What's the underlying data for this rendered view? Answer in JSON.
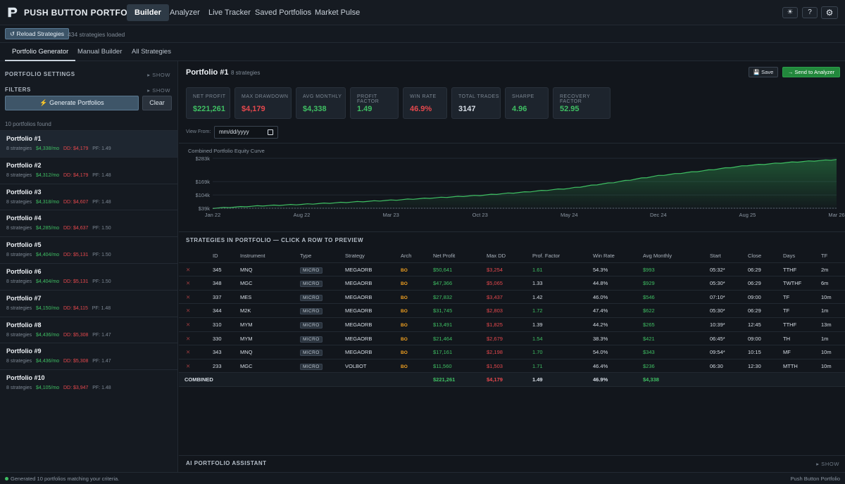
{
  "app": {
    "title": "PUSH BUTTON PORTFOLIO"
  },
  "nav": {
    "items": [
      "Builder",
      "Analyzer",
      "Live Tracker",
      "Saved Portfolios",
      "Market Pulse"
    ],
    "active": "Builder"
  },
  "top_icons": [
    {
      "name": "theme-icon",
      "glyph": "☀"
    },
    {
      "name": "help-icon",
      "glyph": "?"
    },
    {
      "name": "gear-icon",
      "glyph": "⚙"
    }
  ],
  "subbar": {
    "reload_label": "↺ Reload Strategies",
    "loaded_text": "434 strategies loaded"
  },
  "tabs": [
    "Portfolio Generator",
    "Manual Builder",
    "All Strategies"
  ],
  "sidebar": {
    "settings_header": "PORTFOLIO SETTINGS",
    "settings_show": "▸ SHOW",
    "filters_header": "FILTERS",
    "filters_show": "▸ SHOW",
    "generate_label": "⚡ Generate Portfolios",
    "clear_label": "Clear",
    "found_text": "10 portfolios found",
    "portfolios": [
      {
        "title": "Portfolio #1",
        "strategies": "8 strategies",
        "monthly": "$4,338/mo",
        "dd": "DD: $4,179",
        "pf": "PF: 1.49"
      },
      {
        "title": "Portfolio #2",
        "strategies": "8 strategies",
        "monthly": "$4,312/mo",
        "dd": "DD: $4,179",
        "pf": "PF: 1.48"
      },
      {
        "title": "Portfolio #3",
        "strategies": "8 strategies",
        "monthly": "$4,318/mo",
        "dd": "DD: $4,607",
        "pf": "PF: 1.48"
      },
      {
        "title": "Portfolio #4",
        "strategies": "8 strategies",
        "monthly": "$4,285/mo",
        "dd": "DD: $4,637",
        "pf": "PF: 1.50"
      },
      {
        "title": "Portfolio #5",
        "strategies": "8 strategies",
        "monthly": "$4,404/mo",
        "dd": "DD: $5,131",
        "pf": "PF: 1.50"
      },
      {
        "title": "Portfolio #6",
        "strategies": "8 strategies",
        "monthly": "$4,404/mo",
        "dd": "DD: $5,131",
        "pf": "PF: 1.50"
      },
      {
        "title": "Portfolio #7",
        "strategies": "8 strategies",
        "monthly": "$4,150/mo",
        "dd": "DD: $4,115",
        "pf": "PF: 1.48"
      },
      {
        "title": "Portfolio #8",
        "strategies": "8 strategies",
        "monthly": "$4,436/mo",
        "dd": "DD: $5,308",
        "pf": "PF: 1.47"
      },
      {
        "title": "Portfolio #9",
        "strategies": "8 strategies",
        "monthly": "$4,436/mo",
        "dd": "DD: $5,308",
        "pf": "PF: 1.47"
      },
      {
        "title": "Portfolio #10",
        "strategies": "8 strategies",
        "monthly": "$4,105/mo",
        "dd": "DD: $3,947",
        "pf": "PF: 1.48"
      }
    ]
  },
  "main": {
    "title": "Portfolio #1",
    "count": "8 strategies",
    "save_label": "💾 Save",
    "send_label": "→ Send to Analyzer",
    "stats": [
      {
        "label": "NET PROFIT",
        "value": "$221,261",
        "color": "#3fbf63"
      },
      {
        "label": "MAX DRAWDOWN",
        "value": "$4,179",
        "color": "#e5484d"
      },
      {
        "label": "AVG MONTHLY",
        "value": "$4,338",
        "color": "#3fbf63"
      },
      {
        "label": "PROFIT FACTOR",
        "value": "1.49",
        "color": "#3fbf63"
      },
      {
        "label": "WIN RATE",
        "value": "46.9%",
        "color": "#e5484d"
      },
      {
        "label": "TOTAL TRADES",
        "value": "3147",
        "color": "#d6dde5"
      },
      {
        "label": "SHARPE",
        "value": "4.96",
        "color": "#3fbf63"
      },
      {
        "label": "RECOVERY FACTOR",
        "value": "52.95",
        "color": "#3fbf63"
      }
    ],
    "view_from_label": "View From:",
    "date_placeholder": "mm/dd/yyyy",
    "strategies_header": "STRATEGIES IN PORTFOLIO — CLICK A ROW TO PREVIEW",
    "ai_header": "AI PORTFOLIO ASSISTANT",
    "ai_show": "▸ SHOW"
  },
  "chart_data": {
    "type": "area",
    "title": "Combined Portfolio Equity Curve",
    "y_ticks": [
      "$283k",
      "$169k",
      "$104k",
      "$39k"
    ],
    "x_ticks": [
      "Jan 22",
      "Aug 22",
      "Mar 23",
      "Oct 23",
      "May 24",
      "Dec 24",
      "Aug 25",
      "Mar 26"
    ],
    "x": [
      "Jan 22",
      "Apr 22",
      "Aug 22",
      "Dec 22",
      "Mar 23",
      "Jul 23",
      "Oct 23",
      "Jan 24",
      "May 24",
      "Aug 24",
      "Dec 24",
      "Apr 25",
      "Aug 25",
      "Dec 25",
      "Mar 26"
    ],
    "y": [
      39000,
      50000,
      58000,
      68000,
      78000,
      90000,
      102000,
      118000,
      136000,
      165000,
      198000,
      222000,
      248000,
      264000,
      277000
    ],
    "color": "#3fbf63"
  },
  "table": {
    "headers": [
      "ID",
      "Instrument",
      "Type",
      "Strategy",
      "Arch",
      "Net Profit",
      "Max DD",
      "Prof. Factor",
      "Win Rate",
      "Avg Monthly",
      "Start",
      "Close",
      "Days",
      "TF"
    ],
    "rows": [
      {
        "id": "345",
        "inst": "MNQ",
        "type": "MICRO",
        "strategy": "MEGAORB",
        "arch": "BO",
        "net": "$50,641",
        "dd": "$3,254",
        "pf": "1.61",
        "pfc": "g",
        "wr": "54.3%",
        "avg": "$993",
        "start": "05:32*",
        "close": "06:29",
        "days": "TTHF",
        "tf": "2m"
      },
      {
        "id": "348",
        "inst": "MGC",
        "type": "MICRO",
        "strategy": "MEGAORB",
        "arch": "BO",
        "net": "$47,366",
        "dd": "$5,065",
        "pf": "1.33",
        "pfc": "w",
        "wr": "44.8%",
        "avg": "$929",
        "start": "05:30*",
        "close": "06:29",
        "days": "TWTHF",
        "tf": "6m"
      },
      {
        "id": "337",
        "inst": "MES",
        "type": "MICRO",
        "strategy": "MEGAORB",
        "arch": "BO",
        "net": "$27,832",
        "dd": "$3,437",
        "pf": "1.42",
        "pfc": "w",
        "wr": "46.0%",
        "avg": "$546",
        "start": "07:10*",
        "close": "09:00",
        "days": "TF",
        "tf": "10m"
      },
      {
        "id": "344",
        "inst": "M2K",
        "type": "MICRO",
        "strategy": "MEGAORB",
        "arch": "BO",
        "net": "$31,745",
        "dd": "$2,803",
        "pf": "1.72",
        "pfc": "g",
        "wr": "47.4%",
        "avg": "$622",
        "start": "05:30*",
        "close": "06:29",
        "days": "TF",
        "tf": "1m"
      },
      {
        "id": "310",
        "inst": "MYM",
        "type": "MICRO",
        "strategy": "MEGAORB",
        "arch": "BO",
        "net": "$13,491",
        "dd": "$1,825",
        "pf": "1.39",
        "pfc": "w",
        "wr": "44.2%",
        "avg": "$265",
        "start": "10:39*",
        "close": "12:45",
        "days": "TTHF",
        "tf": "13m"
      },
      {
        "id": "330",
        "inst": "MYM",
        "type": "MICRO",
        "strategy": "MEGAORB",
        "arch": "BO",
        "net": "$21,464",
        "dd": "$2,679",
        "pf": "1.54",
        "pfc": "g",
        "wr": "38.3%",
        "avg": "$421",
        "start": "06:45*",
        "close": "09:00",
        "days": "TH",
        "tf": "1m"
      },
      {
        "id": "343",
        "inst": "MNQ",
        "type": "MICRO",
        "strategy": "MEGAORB",
        "arch": "BO",
        "net": "$17,161",
        "dd": "$2,198",
        "pf": "1.70",
        "pfc": "g",
        "wr": "54.0%",
        "avg": "$343",
        "start": "09:54*",
        "close": "10:15",
        "days": "MF",
        "tf": "10m"
      },
      {
        "id": "233",
        "inst": "MGC",
        "type": "MICRO",
        "strategy": "VOLBOT",
        "arch": "BO",
        "net": "$11,560",
        "dd": "$1,503",
        "pf": "1.71",
        "pfc": "g",
        "wr": "46.4%",
        "avg": "$236",
        "start": "06:30",
        "close": "12:30",
        "days": "MTTH",
        "tf": "10m"
      }
    ],
    "combined": {
      "label": "COMBINED",
      "net": "$221,261",
      "dd": "$4,179",
      "pf": "1.49",
      "wr": "46.9%",
      "avg": "$4,338"
    }
  },
  "status": {
    "message": "Generated 10 portfolios matching your criteria.",
    "brand": "Push Button Portfolio"
  }
}
